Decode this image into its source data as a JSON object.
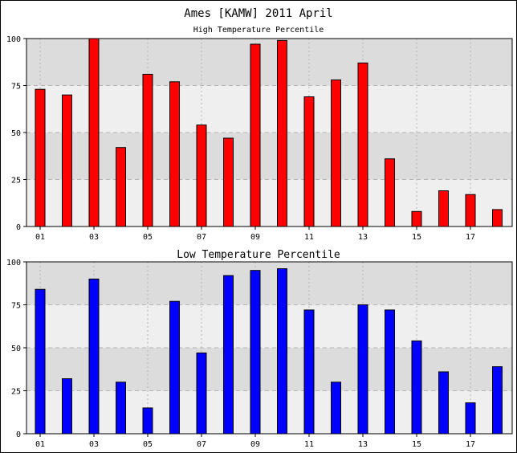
{
  "title": "Ames [KAMW] 2011 April",
  "chart_data": [
    {
      "type": "bar",
      "title": "High Temperature Percentile",
      "x": [
        1,
        2,
        3,
        4,
        5,
        6,
        7,
        8,
        9,
        10,
        11,
        12,
        13,
        14,
        15,
        16,
        17,
        18
      ],
      "x_tick_labels": [
        "01",
        "03",
        "05",
        "07",
        "09",
        "11",
        "13",
        "15",
        "17"
      ],
      "x_tick_values": [
        1,
        3,
        5,
        7,
        9,
        11,
        13,
        15,
        17
      ],
      "values": [
        73,
        70,
        100,
        42,
        81,
        77,
        54,
        47,
        97,
        99,
        69,
        78,
        87,
        36,
        8,
        19,
        17,
        9
      ],
      "ylim": [
        0,
        100
      ],
      "y_ticks": [
        0,
        25,
        50,
        75,
        100
      ],
      "bar_color": "#ff0000",
      "grid": true
    },
    {
      "type": "bar",
      "title": "Low Temperature Percentile",
      "x": [
        1,
        2,
        3,
        4,
        5,
        6,
        7,
        8,
        9,
        10,
        11,
        12,
        13,
        14,
        15,
        16,
        17,
        18
      ],
      "x_tick_labels": [
        "01",
        "03",
        "05",
        "07",
        "09",
        "11",
        "13",
        "15",
        "17"
      ],
      "x_tick_values": [
        1,
        3,
        5,
        7,
        9,
        11,
        13,
        15,
        17
      ],
      "values": [
        84,
        32,
        90,
        30,
        15,
        77,
        47,
        92,
        95,
        96,
        72,
        30,
        75,
        72,
        54,
        36,
        18,
        39
      ],
      "ylim": [
        0,
        100
      ],
      "y_ticks": [
        0,
        25,
        50,
        75,
        100
      ],
      "bar_color": "#0000ff",
      "grid": true
    }
  ],
  "colors": {
    "band_dark": "#dcdcdc",
    "band_light": "#efefef",
    "grid": "#b4b4b4"
  }
}
